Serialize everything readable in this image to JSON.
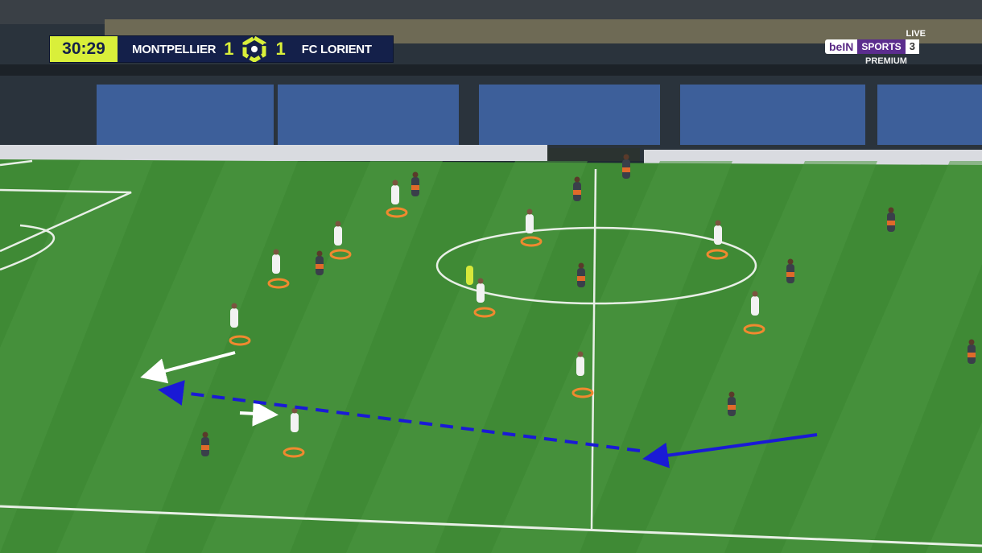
{
  "scoreboard": {
    "clock": "30:29",
    "home_team": "MONTPELLIER",
    "home_score": "1",
    "away_team": "FC LORIENT",
    "away_score": "1",
    "league_logo": "ligue-1-logo"
  },
  "broadcaster": {
    "live": "LIVE",
    "brand_a": "beIN",
    "brand_b": "SPORTS",
    "channel": "3",
    "tier": "PREMIUM"
  },
  "colors": {
    "pitch": "#3f8a35",
    "highlight_ring": "#f0892f",
    "pass_arrow": "#1a1ad6",
    "run_arrow": "#ffffff",
    "scoreboard_accent": "#d9ef3a",
    "scoreboard_bg": "#14204a"
  }
}
